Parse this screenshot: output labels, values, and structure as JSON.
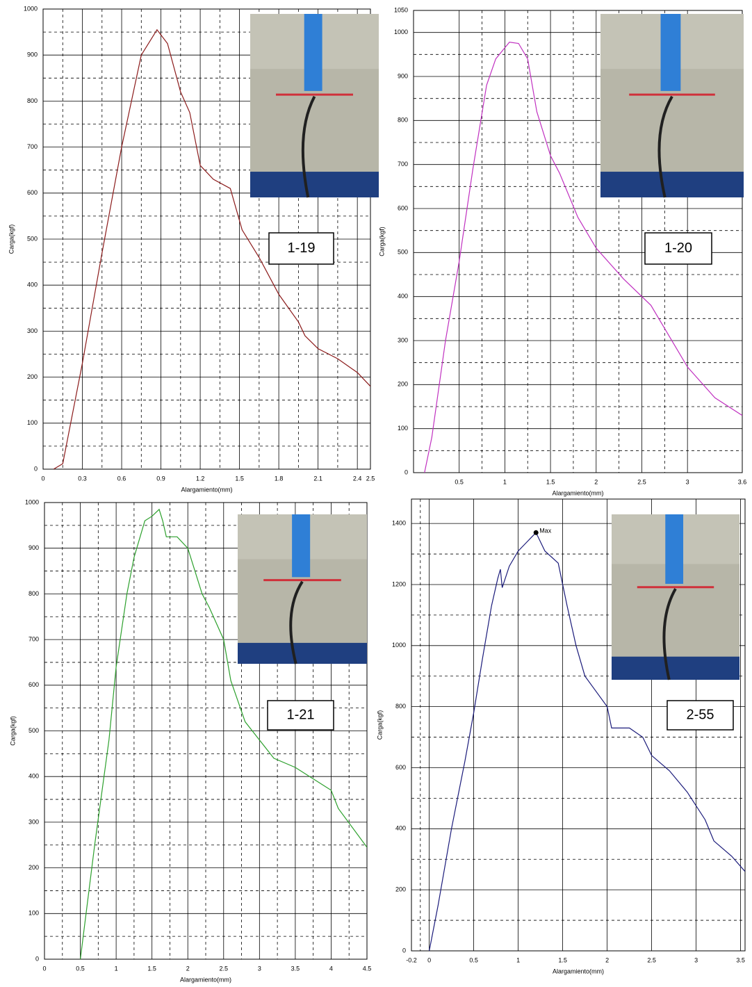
{
  "chart_data": [
    {
      "type": "line",
      "x_label": "Alargamiento(mm)",
      "y_label": "Carga(kgf)",
      "label": "1-19",
      "color": "#8b1a1a",
      "xlim": [
        0,
        2.5
      ],
      "ylim": [
        0,
        1000
      ],
      "xticks": [
        0,
        0.3,
        0.6,
        0.9,
        1.2,
        1.5,
        1.8,
        2.1,
        2.4,
        2.5
      ],
      "yticks": [
        0,
        100,
        200,
        300,
        400,
        500,
        600,
        700,
        800,
        900,
        1000
      ],
      "grid": true,
      "x": [
        0.08,
        0.15,
        0.3,
        0.45,
        0.6,
        0.75,
        0.87,
        0.95,
        1.05,
        1.12,
        1.2,
        1.3,
        1.43,
        1.52,
        1.65,
        1.8,
        1.95,
        2.0,
        2.1,
        2.25,
        2.4,
        2.5
      ],
      "values": [
        0,
        12,
        230,
        470,
        700,
        900,
        955,
        925,
        820,
        775,
        660,
        630,
        610,
        520,
        460,
        380,
        320,
        290,
        262,
        240,
        210,
        180
      ]
    },
    {
      "type": "line",
      "x_label": "Alargamiento(mm)",
      "y_label": "Carga(kgf)",
      "label": "1-20",
      "color": "#c030c0",
      "xlim": [
        0,
        3.6
      ],
      "ylim": [
        0,
        1050
      ],
      "xticks": [
        0.5,
        1,
        1.5,
        2,
        2.5,
        3,
        3.6
      ],
      "yticks": [
        0,
        100,
        200,
        300,
        400,
        500,
        600,
        700,
        800,
        900,
        1000,
        1050
      ],
      "grid": true,
      "x": [
        0.12,
        0.2,
        0.35,
        0.5,
        0.65,
        0.8,
        0.9,
        1.05,
        1.15,
        1.25,
        1.35,
        1.5,
        1.6,
        1.8,
        2.0,
        2.3,
        2.6,
        2.8,
        3.0,
        3.3,
        3.6
      ],
      "values": [
        0,
        80,
        300,
        480,
        690,
        880,
        940,
        978,
        975,
        940,
        820,
        720,
        680,
        580,
        510,
        440,
        380,
        310,
        240,
        170,
        130
      ]
    },
    {
      "type": "line",
      "x_label": "Alargamiento(mm)",
      "y_label": "Carga(kgf)",
      "label": "1-21",
      "color": "#2ca02c",
      "xlim": [
        0,
        4.5
      ],
      "ylim": [
        0,
        1000
      ],
      "xticks": [
        0,
        0.5,
        1,
        1.5,
        2,
        2.5,
        3,
        3.5,
        4,
        4.5
      ],
      "yticks": [
        0,
        100,
        200,
        300,
        400,
        500,
        600,
        700,
        800,
        900,
        1000
      ],
      "grid": true,
      "x": [
        0.5,
        0.7,
        0.9,
        1.0,
        1.15,
        1.25,
        1.4,
        1.5,
        1.6,
        1.65,
        1.7,
        1.85,
        2.0,
        2.2,
        2.3,
        2.5,
        2.6,
        2.8,
        3.0,
        3.2,
        3.5,
        3.7,
        4.0,
        4.1,
        4.5
      ],
      "values": [
        0,
        250,
        480,
        640,
        800,
        880,
        960,
        970,
        985,
        960,
        925,
        925,
        900,
        800,
        770,
        700,
        610,
        520,
        480,
        440,
        420,
        400,
        370,
        330,
        245
      ]
    },
    {
      "type": "line",
      "x_label": "Alargamiento(mm)",
      "y_label": "Carga(kgf)",
      "label": "2-55",
      "color": "#1a1a7a",
      "xlim": [
        -0.2,
        3.55
      ],
      "ylim": [
        0,
        1480
      ],
      "xticks": [
        -0.2,
        0,
        0.5,
        1,
        1.5,
        2,
        2.5,
        3,
        3.5
      ],
      "yticks": [
        0,
        200,
        400,
        600,
        800,
        1000,
        1200,
        1400
      ],
      "grid": true,
      "x": [
        0,
        0.1,
        0.25,
        0.4,
        0.5,
        0.6,
        0.7,
        0.77,
        0.8,
        0.82,
        0.9,
        1.0,
        1.1,
        1.2,
        1.3,
        1.45,
        1.55,
        1.65,
        1.75,
        1.85,
        2.0,
        2.05,
        2.25,
        2.4,
        2.5,
        2.7,
        2.9,
        3.1,
        3.2,
        3.4,
        3.55
      ],
      "values": [
        0,
        150,
        400,
        620,
        780,
        960,
        1130,
        1220,
        1250,
        1190,
        1260,
        1310,
        1340,
        1370,
        1310,
        1270,
        1130,
        1000,
        900,
        860,
        800,
        730,
        730,
        700,
        640,
        590,
        520,
        430,
        360,
        310,
        260
      ],
      "annotations": [
        {
          "text": "Max",
          "x": 1.2,
          "y": 1370
        }
      ]
    }
  ]
}
